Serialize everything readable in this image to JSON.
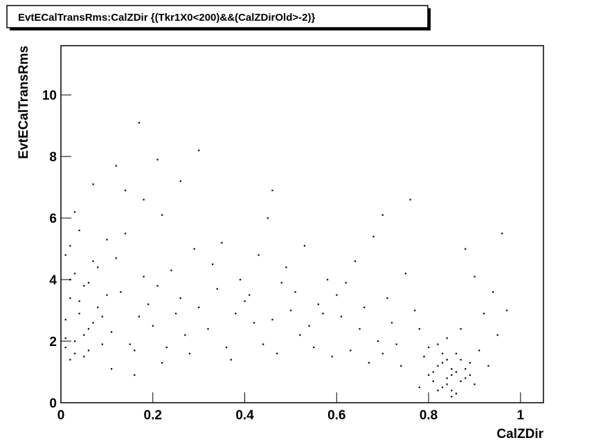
{
  "chart_data": {
    "type": "scatter",
    "title": "EvtECalTransRms:CalZDir {(Tkr1X0<200)&&(CalZDirOld>-2)}",
    "x_label": "CalZDir",
    "y_label": "EvtECalTransRms",
    "color": "#000000",
    "xlim": [
      0,
      1.05
    ],
    "ylim": [
      0,
      11.6
    ],
    "xticks": [
      0,
      0.2,
      0.4,
      0.6,
      0.8,
      1
    ],
    "yticks": [
      0,
      2,
      4,
      6,
      8,
      10
    ],
    "grid": false,
    "x": [
      0.01,
      0.02,
      0.03,
      0.01,
      0.04,
      0.05,
      0.02,
      0.06,
      0.03,
      0.07,
      0.08,
      0.01,
      0.09,
      0.04,
      0.05,
      0.02,
      0.1,
      0.03,
      0.06,
      0.07,
      0.01,
      0.04,
      0.08,
      0.05,
      0.09,
      0.03,
      0.06,
      0.02,
      0.1,
      0.07,
      0.11,
      0.13,
      0.15,
      0.12,
      0.17,
      0.14,
      0.19,
      0.16,
      0.18,
      0.2,
      0.21,
      0.23,
      0.22,
      0.25,
      0.24,
      0.27,
      0.26,
      0.29,
      0.28,
      0.3,
      0.12,
      0.17,
      0.18,
      0.21,
      0.3,
      0.14,
      0.26,
      0.22,
      0.16,
      0.11,
      0.32,
      0.34,
      0.36,
      0.33,
      0.38,
      0.35,
      0.4,
      0.37,
      0.39,
      0.42,
      0.41,
      0.44,
      0.43,
      0.46,
      0.45,
      0.48,
      0.47,
      0.5,
      0.49,
      0.52,
      0.51,
      0.54,
      0.53,
      0.56,
      0.55,
      0.58,
      0.57,
      0.6,
      0.59,
      0.46,
      0.61,
      0.63,
      0.62,
      0.65,
      0.64,
      0.67,
      0.66,
      0.69,
      0.68,
      0.7,
      0.71,
      0.73,
      0.72,
      0.75,
      0.74,
      0.77,
      0.76,
      0.79,
      0.78,
      0.7,
      0.8,
      0.82,
      0.84,
      0.86,
      0.83,
      0.85,
      0.87,
      0.81,
      0.88,
      0.84,
      0.79,
      0.83,
      0.85,
      0.86,
      0.82,
      0.89,
      0.84,
      0.87,
      0.8,
      0.9,
      0.91,
      0.92,
      0.78,
      0.93,
      0.94,
      0.96,
      0.95,
      0.9,
      0.97,
      0.88,
      0.81,
      0.85,
      0.83,
      0.86,
      0.87,
      0.82,
      0.84,
      0.89,
      0.88,
      0.85
    ],
    "values": [
      2.1,
      3.4,
      4.2,
      1.8,
      2.9,
      3.8,
      5.1,
      2.4,
      1.6,
      4.6,
      3.1,
      2.7,
      1.9,
      5.6,
      2.2,
      4.0,
      3.5,
      6.2,
      1.7,
      2.6,
      4.8,
      3.3,
      4.4,
      1.5,
      2.8,
      2.0,
      3.9,
      1.4,
      5.3,
      7.1,
      2.3,
      3.6,
      1.9,
      4.7,
      2.8,
      5.5,
      3.2,
      1.7,
      4.1,
      2.5,
      3.8,
      1.8,
      6.1,
      2.9,
      4.3,
      2.2,
      3.4,
      5.0,
      1.6,
      3.1,
      7.7,
      9.1,
      6.6,
      7.9,
      8.2,
      6.9,
      7.2,
      1.3,
      0.9,
      1.1,
      2.4,
      3.7,
      1.8,
      4.5,
      2.9,
      5.2,
      3.3,
      1.4,
      4.0,
      2.6,
      3.5,
      1.9,
      4.8,
      2.7,
      6.0,
      3.9,
      1.6,
      3.0,
      4.4,
      2.2,
      3.6,
      2.5,
      5.1,
      3.2,
      1.8,
      4.0,
      2.9,
      3.5,
      1.5,
      6.9,
      2.8,
      1.7,
      3.9,
      2.4,
      4.6,
      1.3,
      3.1,
      2.0,
      5.4,
      1.6,
      3.4,
      1.9,
      2.6,
      4.2,
      1.2,
      3.0,
      6.6,
      1.5,
      2.4,
      6.1,
      0.9,
      1.2,
      0.6,
      1.0,
      1.6,
      0.4,
      1.4,
      0.7,
      0.8,
      2.1,
      1.5,
      0.5,
      1.1,
      0.3,
      1.9,
      1.3,
      0.8,
      2.4,
      1.8,
      0.6,
      1.7,
      2.9,
      0.5,
      1.2,
      3.6,
      5.5,
      2.2,
      4.1,
      3.0,
      5.0,
      1.0,
      0.9,
      1.3,
      1.6,
      0.7,
      0.4,
      1.4,
      0.9,
      1.1,
      0.2
    ]
  }
}
